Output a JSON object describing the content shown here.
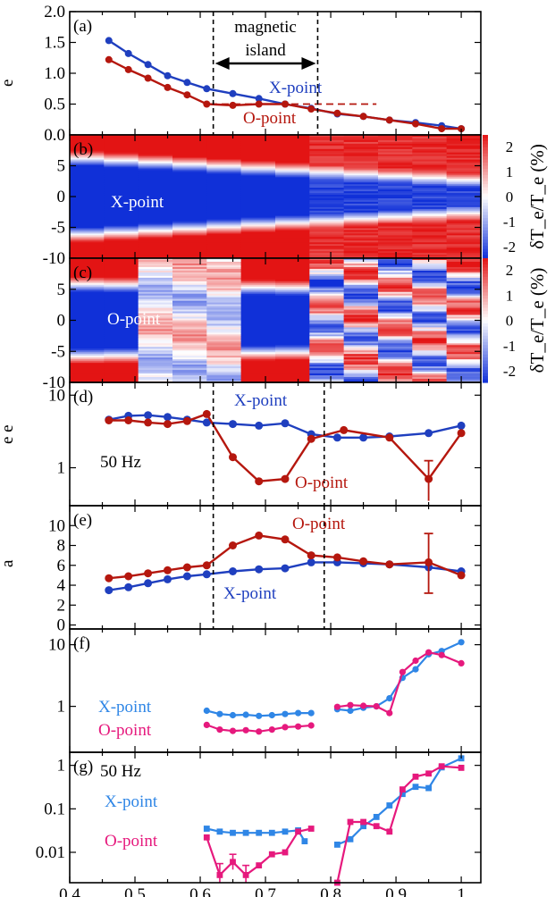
{
  "colors": {
    "x_point": "#1f3fbf",
    "o_point": "#b5170e",
    "x_point_light": "#2f86e6",
    "o_point_pink": "#e6197d",
    "cmap_low": "#1030d8",
    "cmap_mid": "#ffffff",
    "cmap_high": "#e31414"
  },
  "x_ticks": [
    "0.4",
    "0.5",
    "0.6",
    "0.7",
    "0.8",
    "0.9",
    "1"
  ],
  "colorbar": {
    "ticks": [
      "2",
      "1",
      "0",
      "-1",
      "-2"
    ],
    "label": "δT_e/T_e (%)"
  },
  "chart_data": [
    {
      "id": "a",
      "type": "line",
      "panel_label": "(a)",
      "ylabel": "e",
      "xlim": [
        0.4,
        1.03
      ],
      "ylim": [
        0,
        2
      ],
      "yticks": [
        "2.0",
        "1.5",
        "1.0",
        "0.5",
        "0.0"
      ],
      "region": {
        "label_line1": "magnetic",
        "label_line2": "island",
        "x_start": 0.62,
        "x_end": 0.78
      },
      "reference_level": 0.5,
      "series": [
        {
          "name": "X-point",
          "color": "x_point",
          "x": [
            0.46,
            0.49,
            0.52,
            0.55,
            0.58,
            0.61,
            0.65,
            0.69,
            0.73,
            0.77,
            0.81,
            0.85,
            0.89,
            0.93,
            0.97,
            1.0
          ],
          "y": [
            1.53,
            1.32,
            1.14,
            0.96,
            0.85,
            0.75,
            0.67,
            0.59,
            0.5,
            0.43,
            0.34,
            0.3,
            0.24,
            0.2,
            0.15,
            0.1
          ]
        },
        {
          "name": "O-point",
          "color": "o_point",
          "x": [
            0.46,
            0.49,
            0.52,
            0.55,
            0.58,
            0.61,
            0.65,
            0.69,
            0.73,
            0.77,
            0.81,
            0.85,
            0.89,
            0.93,
            0.97,
            1.0
          ],
          "y": [
            1.22,
            1.06,
            0.92,
            0.77,
            0.65,
            0.5,
            0.48,
            0.5,
            0.5,
            0.42,
            0.35,
            0.3,
            0.24,
            0.18,
            0.1,
            0.1
          ]
        }
      ]
    },
    {
      "id": "b",
      "type": "heatmap",
      "panel_label": "(b)",
      "annotation": "X-point",
      "ylim": [
        -10,
        10
      ],
      "yticks": [
        "5",
        "0",
        "-5",
        "-10"
      ]
    },
    {
      "id": "c",
      "type": "heatmap",
      "panel_label": "(c)",
      "annotation": "O-point",
      "ylim": [
        -10,
        10
      ],
      "yticks": [
        "5",
        "0",
        "-5",
        "-10"
      ]
    },
    {
      "id": "d",
      "type": "line",
      "panel_label": "(d)",
      "ylabel": "e  e",
      "note": "50 Hz",
      "scale": "log",
      "ylim": [
        0.3,
        15
      ],
      "yticks": [
        "10",
        "1"
      ],
      "series": [
        {
          "name": "X-point",
          "color": "x_point",
          "x": [
            0.46,
            0.49,
            0.52,
            0.55,
            0.58,
            0.61,
            0.65,
            0.69,
            0.73,
            0.77,
            0.81,
            0.85,
            0.89,
            0.95,
            1.0
          ],
          "y": [
            4.6,
            5.2,
            5.3,
            5.0,
            4.6,
            4.2,
            4.0,
            3.8,
            4.1,
            2.9,
            2.6,
            2.6,
            2.7,
            3.0,
            3.8
          ]
        },
        {
          "name": "O-point",
          "color": "o_point",
          "x": [
            0.46,
            0.49,
            0.52,
            0.55,
            0.58,
            0.61,
            0.65,
            0.69,
            0.73,
            0.77,
            0.82,
            0.89,
            0.95,
            1.0
          ],
          "y": [
            4.5,
            4.5,
            4.2,
            4.0,
            4.4,
            5.5,
            1.4,
            0.65,
            0.7,
            2.5,
            3.3,
            2.6,
            0.7,
            3.0
          ]
        }
      ]
    },
    {
      "id": "e",
      "type": "line",
      "panel_label": "(e)",
      "ylabel": "a",
      "ylim": [
        -0.4,
        12
      ],
      "yticks": [
        "10",
        "8",
        "6",
        "4",
        "2",
        "0"
      ],
      "series": [
        {
          "name": "X-point",
          "color": "x_point",
          "x": [
            0.46,
            0.49,
            0.52,
            0.55,
            0.58,
            0.61,
            0.65,
            0.69,
            0.73,
            0.77,
            0.81,
            0.85,
            0.89,
            0.95,
            1.0
          ],
          "y": [
            3.5,
            3.8,
            4.2,
            4.6,
            4.9,
            5.1,
            5.4,
            5.6,
            5.7,
            6.3,
            6.3,
            6.2,
            6.1,
            5.8,
            5.4
          ]
        },
        {
          "name": "O-point",
          "color": "o_point",
          "x": [
            0.46,
            0.49,
            0.52,
            0.55,
            0.58,
            0.61,
            0.65,
            0.69,
            0.73,
            0.77,
            0.81,
            0.85,
            0.89,
            0.95,
            1.0
          ],
          "y": [
            4.7,
            4.9,
            5.2,
            5.5,
            5.8,
            6.0,
            8.0,
            9.0,
            8.6,
            7.0,
            6.8,
            6.4,
            6.1,
            6.3,
            5.0
          ]
        }
      ]
    },
    {
      "id": "f",
      "type": "line",
      "panel_label": "(f)",
      "scale": "log",
      "ylim": [
        0.18,
        18
      ],
      "yticks": [
        "10",
        "1"
      ],
      "series": [
        {
          "name": "X-point",
          "color": "x_point_light",
          "x": [
            0.61,
            0.63,
            0.65,
            0.67,
            0.69,
            0.71,
            0.73,
            0.75,
            0.77,
            0.81,
            0.83,
            0.85,
            0.87,
            0.89,
            0.91,
            0.93,
            0.95,
            0.97,
            1.0
          ],
          "y": [
            0.85,
            0.75,
            0.72,
            0.73,
            0.7,
            0.72,
            0.75,
            0.78,
            0.78,
            0.9,
            0.85,
            0.95,
            1.0,
            1.35,
            2.9,
            4.0,
            7.0,
            7.9,
            11.0
          ]
        },
        {
          "name": "O-point",
          "color": "o_point_pink",
          "x": [
            0.61,
            0.63,
            0.65,
            0.67,
            0.69,
            0.71,
            0.73,
            0.75,
            0.77,
            0.81,
            0.83,
            0.85,
            0.87,
            0.89,
            0.91,
            0.93,
            0.95,
            0.97,
            1.0
          ],
          "y": [
            0.5,
            0.42,
            0.4,
            0.41,
            0.39,
            0.42,
            0.46,
            0.47,
            0.49,
            0.98,
            1.05,
            1.02,
            1.0,
            0.78,
            3.6,
            5.5,
            7.5,
            6.8,
            5.0
          ]
        }
      ]
    },
    {
      "id": "g",
      "type": "line",
      "panel_label": "(g)",
      "note": "50 Hz",
      "scale": "log",
      "ylim": [
        0.002,
        2
      ],
      "yticks": [
        "1",
        "0.1",
        "0.01"
      ],
      "series": [
        {
          "name": "X-point",
          "color": "x_point_light",
          "x": [
            0.61,
            0.63,
            0.65,
            0.67,
            0.69,
            0.71,
            0.73,
            0.75,
            0.76,
            0.81,
            0.83,
            0.85,
            0.87,
            0.89,
            0.91,
            0.93,
            0.95,
            0.97,
            1.0
          ],
          "y": [
            0.035,
            0.03,
            0.028,
            0.028,
            0.028,
            0.028,
            0.03,
            0.032,
            0.018,
            0.015,
            0.02,
            0.04,
            0.065,
            0.12,
            0.22,
            0.32,
            0.3,
            0.9,
            1.45
          ]
        },
        {
          "name": "O-point",
          "color": "o_point_pink",
          "x": [
            0.61,
            0.63,
            0.65,
            0.67,
            0.69,
            0.71,
            0.73,
            0.75,
            0.77,
            0.81,
            0.83,
            0.85,
            0.87,
            0.89,
            0.91,
            0.93,
            0.95,
            0.97,
            1.0
          ],
          "y": [
            0.022,
            0.003,
            0.006,
            0.003,
            0.005,
            0.009,
            0.01,
            0.03,
            0.035,
            0.002,
            0.05,
            0.05,
            0.04,
            0.03,
            0.28,
            0.55,
            0.65,
            0.95,
            0.88
          ]
        }
      ]
    }
  ]
}
